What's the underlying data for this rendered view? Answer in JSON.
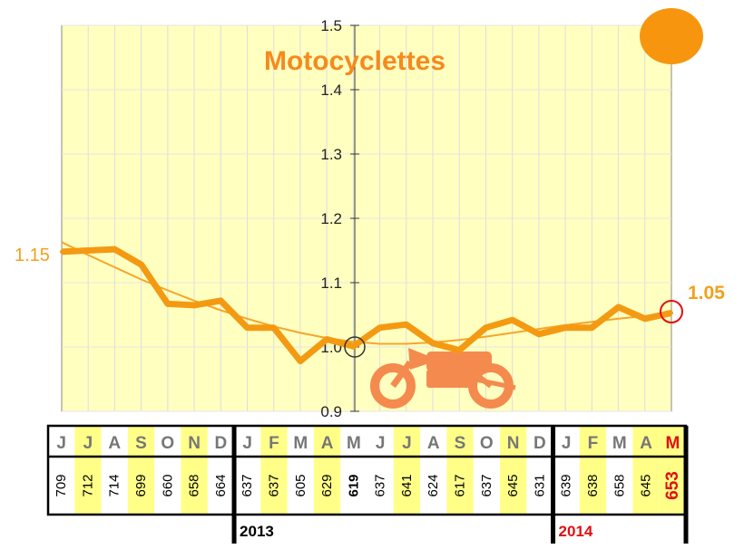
{
  "chart_data": {
    "type": "line",
    "title": "Motocyclettes",
    "ylim": [
      0.9,
      1.5
    ],
    "y_ticks": [
      "0.9",
      "1.0",
      "1.1",
      "1.2",
      "1.3",
      "1.4",
      "1.5"
    ],
    "grid": true,
    "x": [
      "J",
      "J",
      "A",
      "S",
      "O",
      "N",
      "D",
      "J",
      "F",
      "M",
      "A",
      "M",
      "J",
      "J",
      "A",
      "S",
      "O",
      "N",
      "D",
      "J",
      "F",
      "M",
      "A",
      "M"
    ],
    "series": [
      {
        "values": [
          1.148,
          1.15,
          1.152,
          1.128,
          1.067,
          1.065,
          1.072,
          1.03,
          1.03,
          0.978,
          1.012,
          1.001,
          1.03,
          1.035,
          1.006,
          0.995,
          1.03,
          1.042,
          1.02,
          1.03,
          1.03,
          1.062,
          1.044,
          1.053
        ]
      },
      {
        "values": [
          1.163,
          1.143,
          1.124,
          1.105,
          1.088,
          1.072,
          1.057,
          1.044,
          1.032,
          1.022,
          1.014,
          1.008,
          1.005,
          1.005,
          1.007,
          1.011,
          1.016,
          1.022,
          1.028,
          1.034,
          1.039,
          1.044,
          1.048,
          1.053
        ]
      }
    ],
    "start_label": "1.15",
    "end_label": "1.05",
    "months": [
      "J",
      "J",
      "A",
      "S",
      "O",
      "N",
      "D",
      "J",
      "F",
      "M",
      "A",
      "M",
      "J",
      "J",
      "A",
      "S",
      "O",
      "N",
      "D",
      "J",
      "F",
      "M",
      "A",
      "M"
    ],
    "counts": [
      "709",
      "712",
      "714",
      "699",
      "660",
      "658",
      "664",
      "637",
      "637",
      "605",
      "629",
      "619",
      "637",
      "641",
      "624",
      "617",
      "637",
      "645",
      "631",
      "639",
      "638",
      "658",
      "645",
      "653"
    ],
    "years": [
      "2013",
      "2014"
    ],
    "colors": {
      "line": "#f39a12",
      "trend": "#f7a52a",
      "plot_bg": "#ffffc0",
      "highlight": "#ffff88",
      "accent_red": "#e01010",
      "moto": "#f58a4e"
    }
  }
}
